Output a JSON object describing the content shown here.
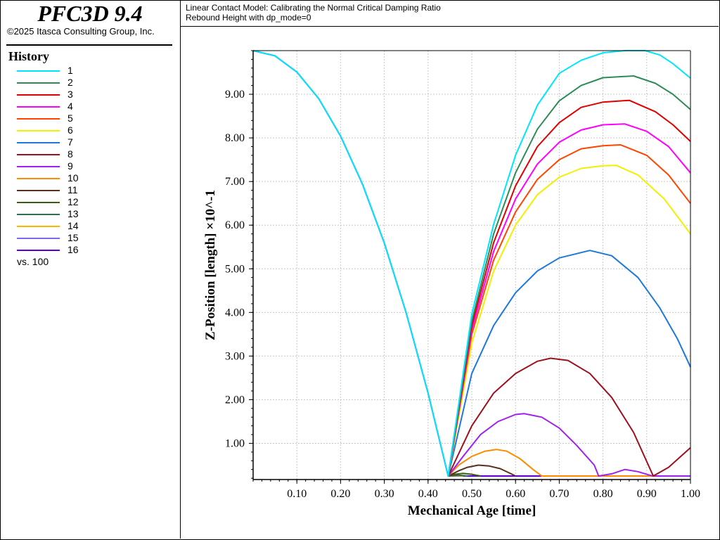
{
  "app": {
    "title": "PFC3D 9.4",
    "copyright": "©2025 Itasca Consulting Group, Inc."
  },
  "sidebar": {
    "heading": "History",
    "vs_label": "vs. 100"
  },
  "plot_titles": [
    "Linear Contact Model: Calibrating the Normal Critical Damping Ratio",
    "Rebound Height with dp_mode=0"
  ],
  "chart_data": {
    "type": "line",
    "xlabel": "Mechanical Age [time]",
    "ylabel": "Z-Position [length] ×10^-1",
    "xlim": [
      0,
      1.0
    ],
    "ylim": [
      0.17,
      10.0
    ],
    "xticks": [
      "0.10",
      "0.20",
      "0.30",
      "0.40",
      "0.50",
      "0.60",
      "0.70",
      "0.80",
      "0.90",
      "1.00"
    ],
    "yticks": [
      "1.00",
      "2.00",
      "3.00",
      "4.00",
      "5.00",
      "6.00",
      "7.00",
      "8.00",
      "9.00"
    ],
    "grid": true,
    "legend_placement": "left-sidebar",
    "series": [
      {
        "name": "1",
        "color": "#00e5ff",
        "points": [
          [
            0,
            10
          ],
          [
            0.05,
            9.88
          ],
          [
            0.1,
            9.51
          ],
          [
            0.15,
            8.9
          ],
          [
            0.2,
            8.04
          ],
          [
            0.25,
            6.94
          ],
          [
            0.3,
            5.59
          ],
          [
            0.35,
            3.99
          ],
          [
            0.4,
            2.15
          ],
          [
            0.446,
            0.25
          ],
          [
            0.5,
            3.96
          ],
          [
            0.55,
            6.02
          ],
          [
            0.6,
            7.6
          ],
          [
            0.65,
            8.75
          ],
          [
            0.7,
            9.48
          ],
          [
            0.75,
            9.78
          ],
          [
            0.8,
            9.95
          ],
          [
            0.85,
            10.0
          ],
          [
            0.896,
            10.0
          ],
          [
            0.93,
            9.9
          ],
          [
            0.96,
            9.7
          ],
          [
            1.0,
            9.37
          ]
        ]
      },
      {
        "name": "2",
        "color": "#2e8b57",
        "points": [
          [
            0.446,
            0.25
          ],
          [
            0.5,
            3.8
          ],
          [
            0.55,
            5.8
          ],
          [
            0.6,
            7.2
          ],
          [
            0.65,
            8.2
          ],
          [
            0.7,
            8.85
          ],
          [
            0.75,
            9.2
          ],
          [
            0.8,
            9.38
          ],
          [
            0.87,
            9.42
          ],
          [
            0.92,
            9.25
          ],
          [
            0.96,
            9.0
          ],
          [
            1.0,
            8.65
          ]
        ]
      },
      {
        "name": "3",
        "color": "#e00000",
        "points": [
          [
            0.446,
            0.25
          ],
          [
            0.5,
            3.7
          ],
          [
            0.55,
            5.6
          ],
          [
            0.6,
            6.9
          ],
          [
            0.65,
            7.8
          ],
          [
            0.7,
            8.35
          ],
          [
            0.75,
            8.7
          ],
          [
            0.8,
            8.82
          ],
          [
            0.86,
            8.86
          ],
          [
            0.92,
            8.6
          ],
          [
            0.96,
            8.3
          ],
          [
            1.0,
            7.92
          ]
        ]
      },
      {
        "name": "4",
        "color": "#ff00ff",
        "points": [
          [
            0.446,
            0.25
          ],
          [
            0.5,
            3.6
          ],
          [
            0.55,
            5.4
          ],
          [
            0.6,
            6.6
          ],
          [
            0.65,
            7.4
          ],
          [
            0.7,
            7.9
          ],
          [
            0.75,
            8.18
          ],
          [
            0.8,
            8.3
          ],
          [
            0.85,
            8.32
          ],
          [
            0.9,
            8.15
          ],
          [
            0.95,
            7.8
          ],
          [
            1.0,
            7.2
          ]
        ]
      },
      {
        "name": "5",
        "color": "#ff4500",
        "points": [
          [
            0.446,
            0.25
          ],
          [
            0.5,
            3.5
          ],
          [
            0.55,
            5.2
          ],
          [
            0.6,
            6.3
          ],
          [
            0.65,
            7.05
          ],
          [
            0.7,
            7.5
          ],
          [
            0.75,
            7.75
          ],
          [
            0.8,
            7.82
          ],
          [
            0.84,
            7.84
          ],
          [
            0.9,
            7.6
          ],
          [
            0.95,
            7.15
          ],
          [
            1.0,
            6.5
          ]
        ]
      },
      {
        "name": "6",
        "color": "#f0f000",
        "points": [
          [
            0.446,
            0.25
          ],
          [
            0.5,
            3.3
          ],
          [
            0.55,
            4.95
          ],
          [
            0.6,
            6.0
          ],
          [
            0.65,
            6.7
          ],
          [
            0.7,
            7.1
          ],
          [
            0.75,
            7.3
          ],
          [
            0.8,
            7.36
          ],
          [
            0.83,
            7.37
          ],
          [
            0.88,
            7.15
          ],
          [
            0.94,
            6.6
          ],
          [
            1.0,
            5.8
          ]
        ]
      },
      {
        "name": "7",
        "color": "#1e78dc",
        "points": [
          [
            0.446,
            0.25
          ],
          [
            0.5,
            2.6
          ],
          [
            0.55,
            3.7
          ],
          [
            0.6,
            4.45
          ],
          [
            0.65,
            4.95
          ],
          [
            0.7,
            5.25
          ],
          [
            0.77,
            5.42
          ],
          [
            0.82,
            5.3
          ],
          [
            0.88,
            4.8
          ],
          [
            0.93,
            4.1
          ],
          [
            0.97,
            3.4
          ],
          [
            1.0,
            2.75
          ]
        ]
      },
      {
        "name": "8",
        "color": "#9b111e",
        "points": [
          [
            0.446,
            0.25
          ],
          [
            0.5,
            1.4
          ],
          [
            0.55,
            2.15
          ],
          [
            0.6,
            2.6
          ],
          [
            0.65,
            2.88
          ],
          [
            0.68,
            2.95
          ],
          [
            0.72,
            2.9
          ],
          [
            0.77,
            2.6
          ],
          [
            0.82,
            2.05
          ],
          [
            0.87,
            1.25
          ],
          [
            0.915,
            0.25
          ],
          [
            0.95,
            0.45
          ],
          [
            1.0,
            0.9
          ]
        ]
      },
      {
        "name": "9",
        "color": "#a020f0",
        "points": [
          [
            0.446,
            0.25
          ],
          [
            0.48,
            0.7
          ],
          [
            0.52,
            1.2
          ],
          [
            0.56,
            1.5
          ],
          [
            0.6,
            1.66
          ],
          [
            0.62,
            1.68
          ],
          [
            0.66,
            1.6
          ],
          [
            0.7,
            1.35
          ],
          [
            0.74,
            0.95
          ],
          [
            0.78,
            0.5
          ],
          [
            0.79,
            0.25
          ],
          [
            0.82,
            0.3
          ],
          [
            0.85,
            0.4
          ],
          [
            0.88,
            0.35
          ],
          [
            0.91,
            0.26
          ],
          [
            0.915,
            0.25
          ],
          [
            1.0,
            0.25
          ]
        ]
      },
      {
        "name": "10",
        "color": "#ff8c00",
        "points": [
          [
            0.446,
            0.25
          ],
          [
            0.47,
            0.5
          ],
          [
            0.5,
            0.7
          ],
          [
            0.53,
            0.82
          ],
          [
            0.556,
            0.86
          ],
          [
            0.58,
            0.82
          ],
          [
            0.61,
            0.65
          ],
          [
            0.64,
            0.4
          ],
          [
            0.66,
            0.25
          ],
          [
            1.0,
            0.25
          ]
        ]
      },
      {
        "name": "11",
        "color": "#5c2e1e",
        "points": [
          [
            0.446,
            0.25
          ],
          [
            0.47,
            0.37
          ],
          [
            0.49,
            0.45
          ],
          [
            0.515,
            0.5
          ],
          [
            0.54,
            0.48
          ],
          [
            0.565,
            0.42
          ],
          [
            0.59,
            0.3
          ],
          [
            0.6,
            0.25
          ]
        ]
      },
      {
        "name": "12",
        "color": "#3a5f0b",
        "points": [
          [
            0.446,
            0.25
          ],
          [
            0.46,
            0.29
          ],
          [
            0.48,
            0.31
          ],
          [
            0.5,
            0.29
          ],
          [
            0.52,
            0.25
          ]
        ]
      },
      {
        "name": "13",
        "color": "#2f6f4f",
        "points": [
          [
            0.446,
            0.25
          ],
          [
            0.47,
            0.27
          ],
          [
            0.49,
            0.25
          ]
        ]
      },
      {
        "name": "14",
        "color": "#ffb400",
        "points": [
          [
            0.446,
            0.25
          ],
          [
            0.47,
            0.26
          ],
          [
            0.48,
            0.25
          ]
        ]
      },
      {
        "name": "15",
        "color": "#7b68ee",
        "points": [
          [
            0.446,
            0.25
          ],
          [
            0.47,
            0.255
          ],
          [
            0.48,
            0.25
          ]
        ]
      },
      {
        "name": "16",
        "color": "#5a00d8",
        "points": [
          [
            0,
            10
          ],
          [
            0.05,
            9.88
          ],
          [
            0.1,
            9.51
          ],
          [
            0.15,
            8.9
          ],
          [
            0.2,
            8.04
          ],
          [
            0.25,
            6.94
          ],
          [
            0.3,
            5.59
          ],
          [
            0.35,
            3.99
          ],
          [
            0.4,
            2.15
          ],
          [
            0.446,
            0.25
          ],
          [
            0.6,
            0.25
          ],
          [
            1.0,
            0.25
          ]
        ]
      }
    ]
  }
}
